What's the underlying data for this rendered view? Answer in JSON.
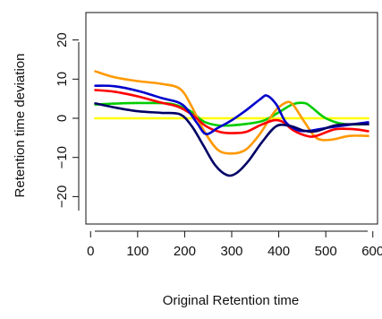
{
  "chart_data": {
    "type": "line",
    "title": "",
    "xlabel": "Original Retention time",
    "ylabel": "Retention time deviation",
    "xlim": [
      -10,
      610
    ],
    "ylim": [
      -27,
      27
    ],
    "x_ticks": [
      0,
      100,
      200,
      300,
      400,
      500,
      600
    ],
    "y_ticks": [
      -20,
      -10,
      0,
      10,
      20
    ],
    "x_tick_labels": [
      "0",
      "100",
      "200",
      "300",
      "400",
      "500",
      "600"
    ],
    "y_tick_labels": [
      "−20",
      "−10",
      "0",
      "10",
      "20"
    ],
    "grid": false,
    "legend": "none",
    "series": [
      {
        "color": "#FFFF00",
        "points": [
          [
            10,
            0
          ],
          [
            100,
            0
          ],
          [
            200,
            0
          ],
          [
            300,
            0
          ],
          [
            400,
            0
          ],
          [
            500,
            0
          ],
          [
            590,
            0
          ]
        ]
      },
      {
        "color": "#00CC00",
        "points": [
          [
            10,
            3.5
          ],
          [
            60,
            3.8
          ],
          [
            110,
            3.9
          ],
          [
            170,
            3.7
          ],
          [
            210,
            2
          ],
          [
            240,
            -0.8
          ],
          [
            270,
            -1.8
          ],
          [
            300,
            -1.8
          ],
          [
            340,
            -1.3
          ],
          [
            370,
            -0.5
          ],
          [
            400,
            1.5
          ],
          [
            430,
            3.6
          ],
          [
            455,
            3.9
          ],
          [
            470,
            2.8
          ],
          [
            500,
            0
          ],
          [
            540,
            -1.5
          ],
          [
            590,
            -1.5
          ]
        ]
      },
      {
        "color": "#FF9900",
        "points": [
          [
            10,
            12
          ],
          [
            50,
            10.5
          ],
          [
            100,
            9.5
          ],
          [
            150,
            8.8
          ],
          [
            190,
            7.5
          ],
          [
            215,
            3
          ],
          [
            240,
            -3
          ],
          [
            270,
            -8
          ],
          [
            300,
            -9
          ],
          [
            330,
            -8
          ],
          [
            360,
            -4
          ],
          [
            390,
            1.5
          ],
          [
            415,
            4
          ],
          [
            430,
            3.5
          ],
          [
            455,
            -1
          ],
          [
            480,
            -5
          ],
          [
            510,
            -5.5
          ],
          [
            550,
            -4.5
          ],
          [
            590,
            -4.5
          ]
        ]
      },
      {
        "color": "#FF0000",
        "points": [
          [
            10,
            7.2
          ],
          [
            50,
            6.8
          ],
          [
            100,
            5.6
          ],
          [
            150,
            4
          ],
          [
            185,
            3
          ],
          [
            215,
            1
          ],
          [
            245,
            -2
          ],
          [
            275,
            -3.5
          ],
          [
            300,
            -3.8
          ],
          [
            330,
            -3.5
          ],
          [
            360,
            -1.8
          ],
          [
            390,
            -0.5
          ],
          [
            410,
            -1
          ],
          [
            430,
            -3
          ],
          [
            460,
            -4.5
          ],
          [
            480,
            -4.5
          ],
          [
            520,
            -2.8
          ],
          [
            560,
            -2.8
          ],
          [
            590,
            -3.3
          ]
        ]
      },
      {
        "color": "#0000CC",
        "points": [
          [
            10,
            8.3
          ],
          [
            50,
            8.2
          ],
          [
            100,
            7
          ],
          [
            150,
            5.2
          ],
          [
            195,
            3.5
          ],
          [
            225,
            -1
          ],
          [
            245,
            -4
          ],
          [
            270,
            -2.5
          ],
          [
            300,
            -0.5
          ],
          [
            330,
            2
          ],
          [
            360,
            4.8
          ],
          [
            375,
            5.8
          ],
          [
            395,
            3.5
          ],
          [
            415,
            -1
          ],
          [
            440,
            -3
          ],
          [
            465,
            -3.2
          ],
          [
            500,
            -2.5
          ],
          [
            540,
            -1.8
          ],
          [
            590,
            -1
          ]
        ]
      },
      {
        "color": "#000066",
        "points": [
          [
            10,
            3.8
          ],
          [
            50,
            2.8
          ],
          [
            100,
            1.8
          ],
          [
            150,
            1.4
          ],
          [
            190,
            1
          ],
          [
            215,
            -2
          ],
          [
            240,
            -7
          ],
          [
            265,
            -12
          ],
          [
            290,
            -14.5
          ],
          [
            310,
            -14
          ],
          [
            335,
            -11
          ],
          [
            365,
            -6
          ],
          [
            395,
            -2
          ],
          [
            425,
            -2
          ],
          [
            455,
            -3.2
          ],
          [
            480,
            -3.3
          ],
          [
            520,
            -1.8
          ],
          [
            560,
            -1.5
          ],
          [
            590,
            -1.5
          ]
        ]
      }
    ]
  }
}
